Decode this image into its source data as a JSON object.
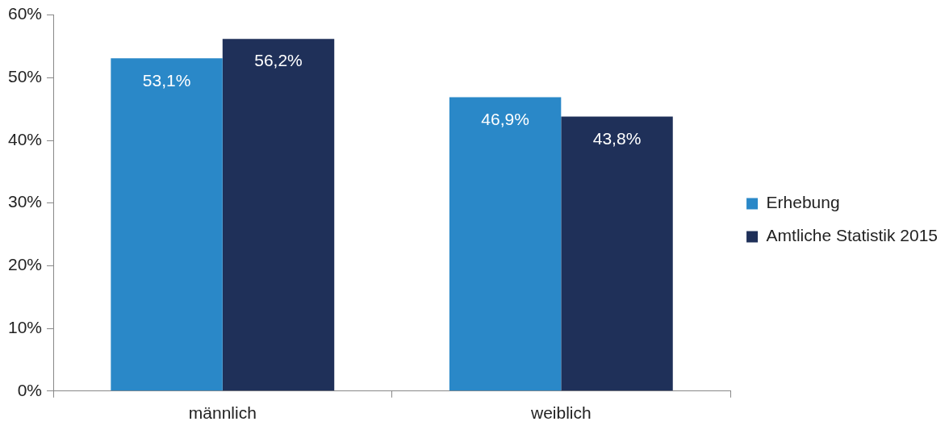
{
  "chart_data": {
    "type": "bar",
    "categories": [
      "männlich",
      "weiblich"
    ],
    "series": [
      {
        "name": "Erhebung",
        "color": "#2a88c8",
        "values": [
          53.1,
          46.9
        ],
        "value_labels": [
          "53,1%",
          "46,9%"
        ]
      },
      {
        "name": "Amtliche Statistik 2015",
        "color": "#1f3059",
        "values": [
          56.2,
          43.8
        ],
        "value_labels": [
          "56,2%",
          "43,8%"
        ]
      }
    ],
    "ylim": [
      0,
      60
    ],
    "yticks": [
      {
        "value": 0,
        "label": "0%"
      },
      {
        "value": 10,
        "label": "10%"
      },
      {
        "value": 20,
        "label": "20%"
      },
      {
        "value": 30,
        "label": "30%"
      },
      {
        "value": 40,
        "label": "40%"
      },
      {
        "value": 50,
        "label": "50%"
      },
      {
        "value": 60,
        "label": "60%"
      }
    ],
    "grid": false,
    "legend": "right"
  }
}
